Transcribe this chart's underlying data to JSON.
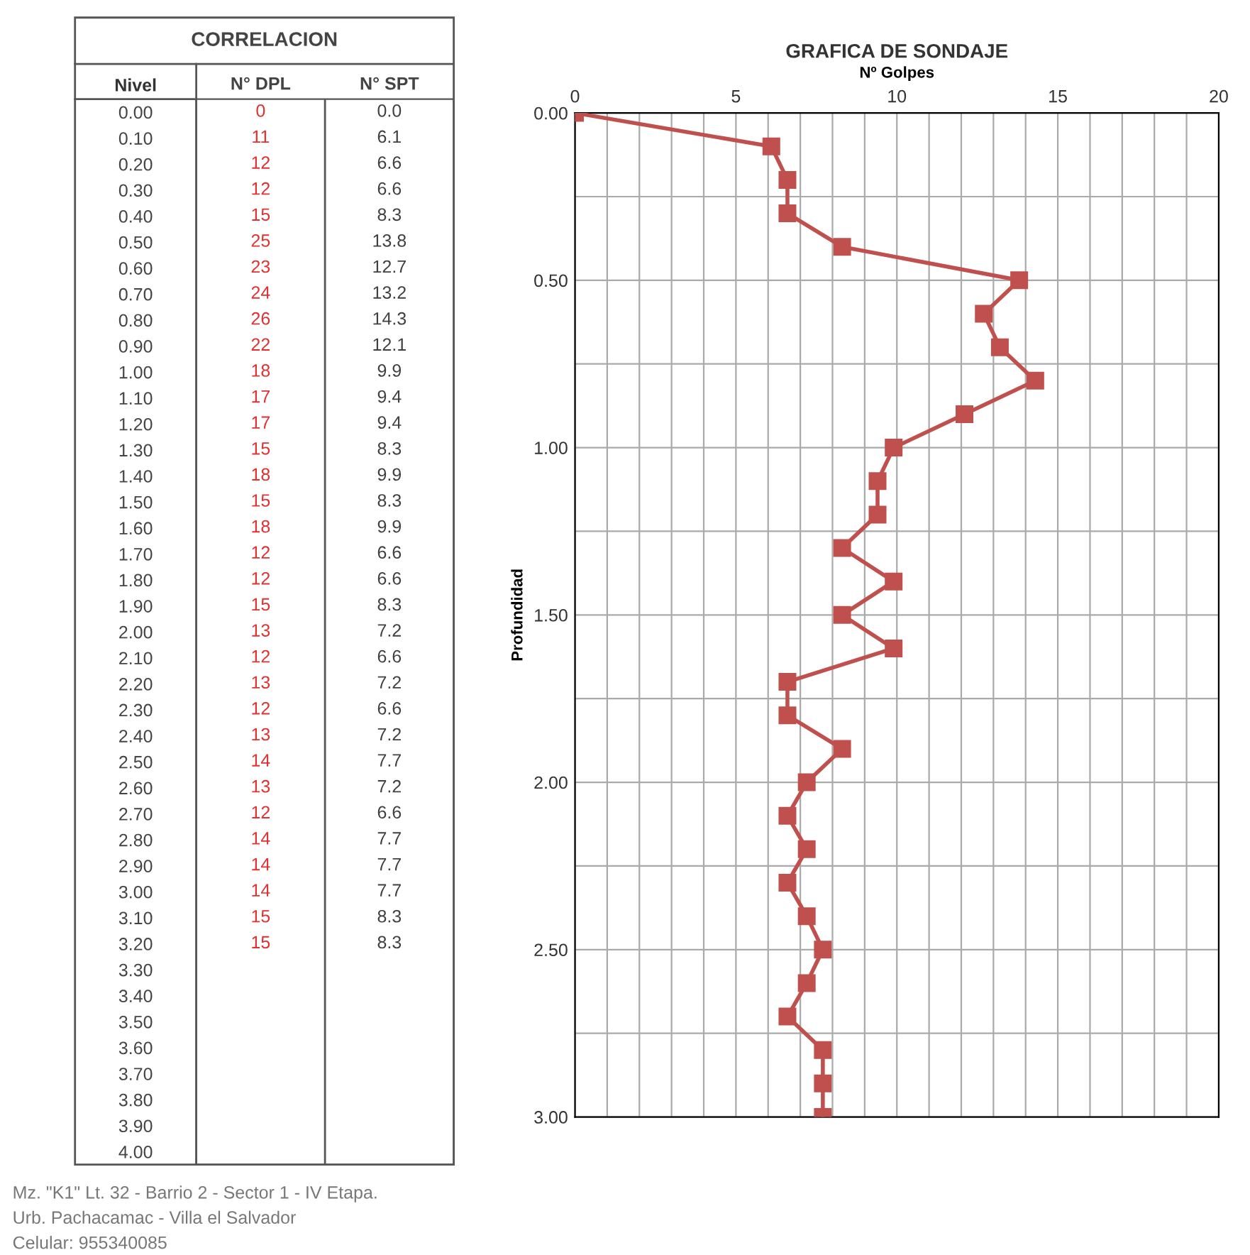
{
  "chart_data": [
    {
      "type": "heatmap",
      "title": "CORRELACION",
      "ylabel": "Nivel",
      "categories": [
        "N° DPL",
        "N° SPT"
      ],
      "y_categories": [
        "0.00",
        "0.10",
        "0.20",
        "0.30",
        "0.40",
        "0.50",
        "0.60",
        "0.70",
        "0.80",
        "0.90",
        "1.00",
        "1.10",
        "1.20",
        "1.30",
        "1.40",
        "1.50",
        "1.60",
        "1.70",
        "1.80",
        "1.90",
        "2.00",
        "2.10",
        "2.20",
        "2.30",
        "2.40",
        "2.50",
        "2.60",
        "2.70",
        "2.80",
        "2.90",
        "3.00",
        "3.10",
        "3.20",
        "3.30",
        "3.40",
        "3.50",
        "3.60",
        "3.70",
        "3.80",
        "3.90",
        "4.00"
      ],
      "cells": [
        [
          0,
          0.0
        ],
        [
          11,
          6.1
        ],
        [
          12,
          6.6
        ],
        [
          12,
          6.6
        ],
        [
          15,
          8.3
        ],
        [
          25,
          13.8
        ],
        [
          23,
          12.7
        ],
        [
          24,
          13.2
        ],
        [
          26,
          14.3
        ],
        [
          22,
          12.1
        ],
        [
          18,
          9.9
        ],
        [
          17,
          9.4
        ],
        [
          17,
          9.4
        ],
        [
          15,
          8.3
        ],
        [
          18,
          9.9
        ],
        [
          15,
          8.3
        ],
        [
          18,
          9.9
        ],
        [
          12,
          6.6
        ],
        [
          12,
          6.6
        ],
        [
          15,
          8.3
        ],
        [
          13,
          7.2
        ],
        [
          12,
          6.6
        ],
        [
          13,
          7.2
        ],
        [
          12,
          6.6
        ],
        [
          13,
          7.2
        ],
        [
          14,
          7.7
        ],
        [
          13,
          7.2
        ],
        [
          12,
          6.6
        ],
        [
          14,
          7.7
        ],
        [
          14,
          7.7
        ],
        [
          14,
          7.7
        ],
        [
          15,
          8.3
        ],
        [
          15,
          8.3
        ],
        [
          null,
          null
        ],
        [
          null,
          null
        ],
        [
          null,
          null
        ],
        [
          null,
          null
        ],
        [
          null,
          null
        ],
        [
          null,
          null
        ],
        [
          null,
          null
        ],
        [
          null,
          null
        ]
      ],
      "cell_labels": [
        [
          "0",
          "0.0"
        ],
        [
          "11",
          "6.1"
        ],
        [
          "12",
          "6.6"
        ],
        [
          "12",
          "6.6"
        ],
        [
          "15",
          "8.3"
        ],
        [
          "25",
          "13.8"
        ],
        [
          "23",
          "12.7"
        ],
        [
          "24",
          "13.2"
        ],
        [
          "26",
          "14.3"
        ],
        [
          "22",
          "12.1"
        ],
        [
          "18",
          "9.9"
        ],
        [
          "17",
          "9.4"
        ],
        [
          "17",
          "9.4"
        ],
        [
          "15",
          "8.3"
        ],
        [
          "18",
          "9.9"
        ],
        [
          "15",
          "8.3"
        ],
        [
          "18",
          "9.9"
        ],
        [
          "12",
          "6.6"
        ],
        [
          "12",
          "6.6"
        ],
        [
          "15",
          "8.3"
        ],
        [
          "13",
          "7.2"
        ],
        [
          "12",
          "6.6"
        ],
        [
          "13",
          "7.2"
        ],
        [
          "12",
          "6.6"
        ],
        [
          "13",
          "7.2"
        ],
        [
          "14",
          "7.7"
        ],
        [
          "13",
          "7.2"
        ],
        [
          "12",
          "6.6"
        ],
        [
          "14",
          "7.7"
        ],
        [
          "14",
          "7.7"
        ],
        [
          "14",
          "7.7"
        ],
        [
          "15",
          "8.3"
        ],
        [
          "15",
          "8.3"
        ],
        [
          null,
          null
        ],
        [
          null,
          null
        ],
        [
          null,
          null
        ],
        [
          null,
          null
        ],
        [
          null,
          null
        ],
        [
          null,
          null
        ],
        [
          null,
          null
        ],
        [
          null,
          null
        ]
      ],
      "colors": [
        "#e03030",
        "#404040"
      ],
      "data_labels": true
    },
    {
      "type": "line",
      "title": "GRAFICA DE SONDAJE",
      "xlabel": "Nº Golpes",
      "ylabel": "Profundidad",
      "series": [
        {
          "color": "#c0504d",
          "x": [
            0.0,
            6.1,
            6.6,
            6.6,
            8.3,
            13.8,
            12.7,
            13.2,
            14.3,
            12.1,
            9.9,
            9.4,
            9.4,
            8.3,
            9.9,
            8.3,
            9.9,
            6.6,
            6.6,
            8.3,
            7.2,
            6.6,
            7.2,
            6.6,
            7.2,
            7.7,
            7.2,
            6.6,
            7.7,
            7.7,
            7.7
          ],
          "values": [
            0.0,
            0.1,
            0.2,
            0.3,
            0.4,
            0.5,
            0.6,
            0.7,
            0.8,
            0.9,
            1.0,
            1.1,
            1.2,
            1.3,
            1.4,
            1.5,
            1.6,
            1.7,
            1.8,
            1.9,
            2.0,
            2.1,
            2.2,
            2.3,
            2.4,
            2.5,
            2.6,
            2.7,
            2.8,
            2.9,
            3.0
          ]
        }
      ],
      "marker": "square",
      "line_style": "solid",
      "grid": true,
      "xlim": [
        0,
        20
      ],
      "xticks": [
        0,
        {
          "value": 1,
          "label": null
        },
        {
          "value": 2,
          "label": null
        },
        {
          "value": 3,
          "label": null
        },
        {
          "value": 4,
          "label": null
        },
        5,
        {
          "value": 6,
          "label": null
        },
        {
          "value": 7,
          "label": null
        },
        {
          "value": 8,
          "label": null
        },
        {
          "value": 9,
          "label": null
        },
        10,
        {
          "value": 11,
          "label": null
        },
        {
          "value": 12,
          "label": null
        },
        {
          "value": 13,
          "label": null
        },
        {
          "value": 14,
          "label": null
        },
        15,
        {
          "value": 16,
          "label": null
        },
        {
          "value": 17,
          "label": null
        },
        {
          "value": 18,
          "label": null
        },
        {
          "value": 19,
          "label": null
        },
        20
      ],
      "ylim": [
        3.0,
        0.0
      ],
      "yticks": [
        {
          "value": 0,
          "label": "0.00"
        },
        {
          "value": 0.25,
          "label": null
        },
        {
          "value": 0.5,
          "label": "0.50"
        },
        {
          "value": 0.75,
          "label": null
        },
        {
          "value": 1.0,
          "label": "1.00"
        },
        {
          "value": 1.25,
          "label": null
        },
        {
          "value": 1.5,
          "label": "1.50"
        },
        {
          "value": 1.75,
          "label": null
        },
        {
          "value": 2.0,
          "label": "2.00"
        },
        {
          "value": 2.25,
          "label": null
        },
        {
          "value": 2.5,
          "label": "2.50"
        },
        {
          "value": 2.75,
          "label": null
        },
        {
          "value": 3.0,
          "label": "3.00"
        }
      ],
      "annotations": [
        "Mz. \"K1\" Lt. 32 - Barrio 2 - Sector 1 - IV Etapa.",
        "Urb. Pachacamac - Villa el Salvador",
        "Celular: 955340085"
      ]
    }
  ]
}
